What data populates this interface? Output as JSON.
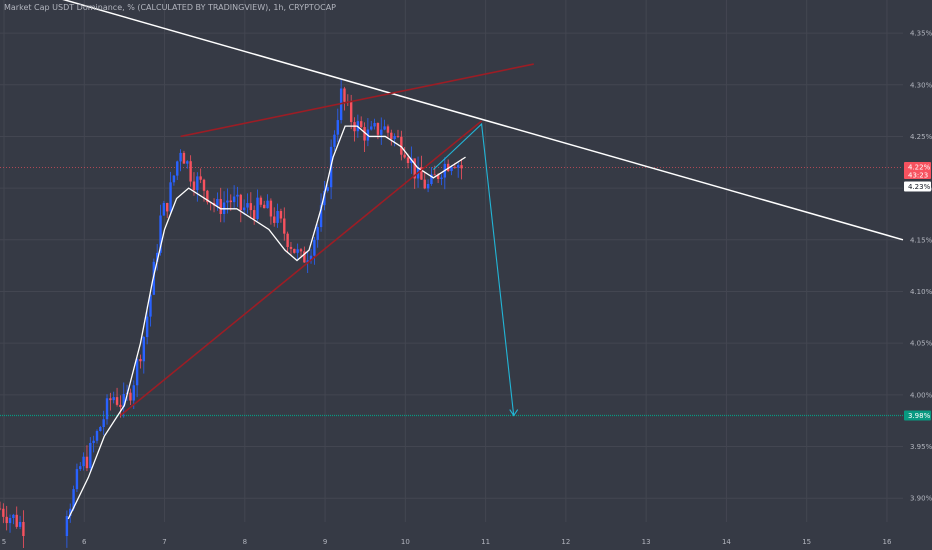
{
  "header": {
    "title": "Market Cap USDT Dominance, % (CALCULATED BY TRADINGVIEW), 1h, CRYPTOCAP"
  },
  "colors": {
    "background": "#363a45",
    "grid": "#434651",
    "candle_up": "#2962ff",
    "candle_down": "#f7525f",
    "moving_average": "#ffffff",
    "trendline": "#ffffff",
    "wedge": "#9c1d25",
    "projection": "#22b5d6",
    "support": "#089981",
    "current_price_line": "#f7525f"
  },
  "price_tags": {
    "current_price": "4.22%",
    "countdown": "43:23",
    "ma_value": "4.23%",
    "support_value": "3.98%"
  },
  "chart_data": {
    "type": "candlestick",
    "title": "Market Cap USDT Dominance, % (CALCULATED BY TRADINGVIEW), 1h, CRYPTOCAP",
    "interval": "1h",
    "x_ticks": [
      "5",
      "6",
      "7",
      "8",
      "9",
      "10",
      "11",
      "12",
      "13",
      "14",
      "15",
      "16"
    ],
    "y_ticks": [
      "3.90%",
      "3.95%",
      "4.00%",
      "4.05%",
      "4.10%",
      "4.15%",
      "4.20%",
      "4.25%",
      "4.30%",
      "4.35%"
    ],
    "xlim": [
      4.95,
      16.2
    ],
    "ylim": [
      3.877,
      4.382
    ],
    "grid": true,
    "legend": "none",
    "key_points": {
      "close": [
        [
          4.95,
          3.89
        ],
        [
          5.3,
          3.87
        ],
        [
          5.7,
          3.88
        ],
        [
          5.85,
          3.9
        ],
        [
          5.95,
          3.93
        ],
        [
          6.05,
          3.94
        ],
        [
          6.2,
          3.97
        ],
        [
          6.35,
          4.0
        ],
        [
          6.5,
          3.99
        ],
        [
          6.6,
          4.01
        ],
        [
          6.75,
          4.06
        ],
        [
          6.85,
          4.11
        ],
        [
          6.95,
          4.17
        ],
        [
          7.05,
          4.19
        ],
        [
          7.2,
          4.24
        ],
        [
          7.35,
          4.21
        ],
        [
          7.5,
          4.2
        ],
        [
          7.65,
          4.18
        ],
        [
          7.8,
          4.19
        ],
        [
          7.95,
          4.18
        ],
        [
          8.1,
          4.18
        ],
        [
          8.25,
          4.18
        ],
        [
          8.4,
          4.17
        ],
        [
          8.55,
          4.15
        ],
        [
          8.7,
          4.13
        ],
        [
          8.8,
          4.14
        ],
        [
          8.9,
          4.16
        ],
        [
          9.0,
          4.19
        ],
        [
          9.1,
          4.25
        ],
        [
          9.2,
          4.29
        ],
        [
          9.3,
          4.27
        ],
        [
          9.4,
          4.26
        ],
        [
          9.55,
          4.25
        ],
        [
          9.7,
          4.26
        ],
        [
          9.85,
          4.25
        ],
        [
          10.0,
          4.24
        ],
        [
          10.15,
          4.21
        ],
        [
          10.3,
          4.2
        ],
        [
          10.45,
          4.22
        ],
        [
          10.6,
          4.23
        ],
        [
          10.7,
          4.22
        ]
      ],
      "moving_average": [
        [
          5.8,
          3.88
        ],
        [
          6.05,
          3.92
        ],
        [
          6.25,
          3.96
        ],
        [
          6.5,
          3.99
        ],
        [
          6.7,
          4.05
        ],
        [
          6.85,
          4.11
        ],
        [
          7.0,
          4.16
        ],
        [
          7.15,
          4.19
        ],
        [
          7.3,
          4.2
        ],
        [
          7.5,
          4.19
        ],
        [
          7.7,
          4.18
        ],
        [
          7.9,
          4.18
        ],
        [
          8.1,
          4.17
        ],
        [
          8.3,
          4.16
        ],
        [
          8.5,
          4.14
        ],
        [
          8.65,
          4.13
        ],
        [
          8.8,
          4.14
        ],
        [
          8.95,
          4.18
        ],
        [
          9.1,
          4.23
        ],
        [
          9.25,
          4.26
        ],
        [
          9.4,
          4.26
        ],
        [
          9.55,
          4.25
        ],
        [
          9.75,
          4.25
        ],
        [
          9.95,
          4.24
        ],
        [
          10.15,
          4.22
        ],
        [
          10.35,
          4.21
        ],
        [
          10.55,
          4.22
        ],
        [
          10.75,
          4.23
        ]
      ],
      "current_price": 4.22,
      "support": 3.98
    },
    "annotations": [
      {
        "type": "trendline",
        "points": [
          [
            4.95,
            4.4
          ],
          [
            16.2,
            4.15
          ]
        ]
      },
      {
        "type": "rising-wedge-upper",
        "points": [
          [
            7.2,
            4.25
          ],
          [
            11.6,
            4.32
          ]
        ]
      },
      {
        "type": "rising-wedge-lower",
        "points": [
          [
            6.45,
            3.98
          ],
          [
            10.95,
            4.265
          ]
        ]
      },
      {
        "type": "projection-arrow",
        "points": [
          [
            10.35,
            4.218
          ],
          [
            10.95,
            4.262
          ],
          [
            11.35,
            3.98
          ]
        ]
      },
      {
        "type": "horizontal-support",
        "value": 3.98
      }
    ]
  }
}
